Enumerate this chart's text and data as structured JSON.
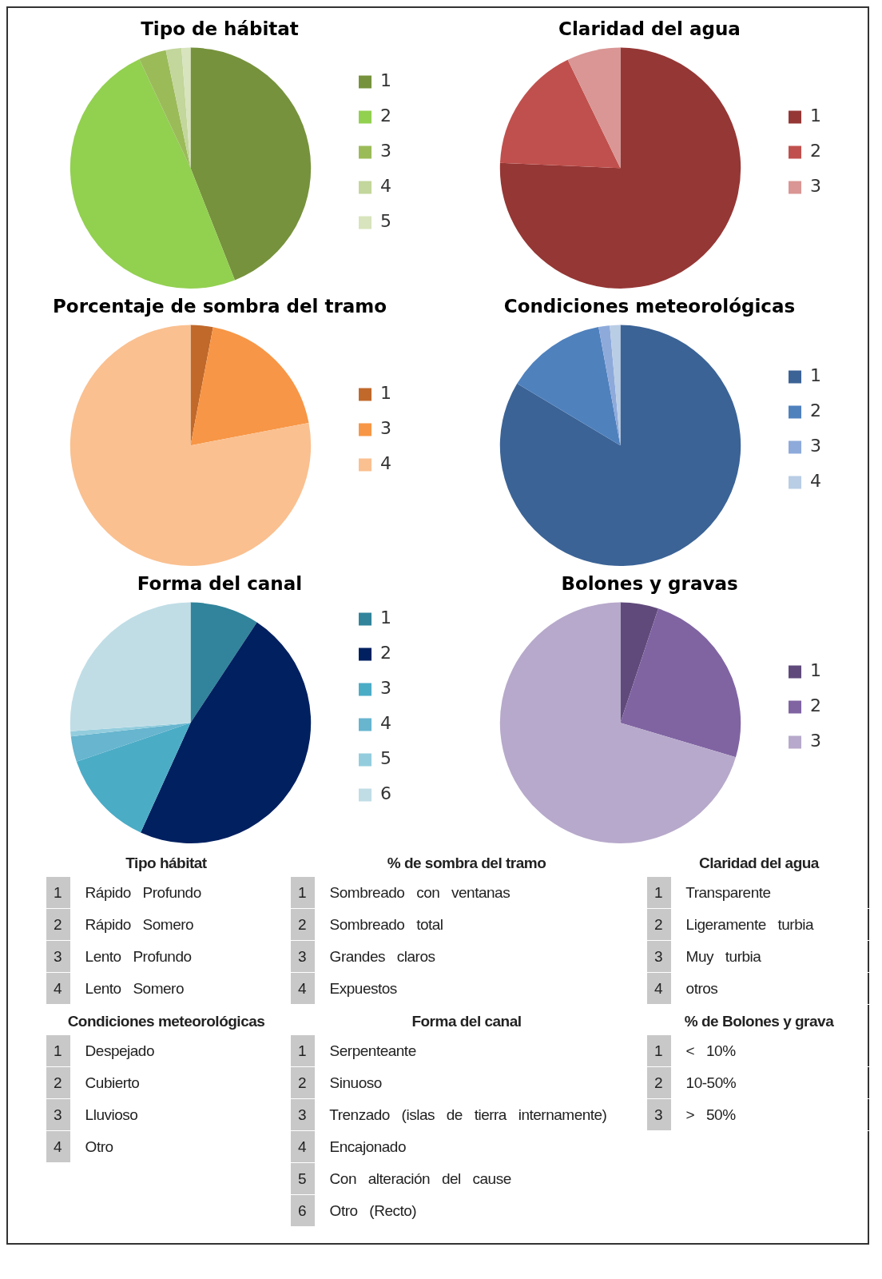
{
  "chart_data": [
    {
      "type": "pie",
      "title": "Tipo de hábitat",
      "categories": [
        "1",
        "2",
        "3",
        "4",
        "5"
      ],
      "values": [
        44,
        49,
        3.7,
        2.1,
        1.2
      ],
      "colors": [
        "#76923c",
        "#92d050",
        "#9bbb59",
        "#c3d69b",
        "#d7e4bd"
      ],
      "legend": "right"
    },
    {
      "type": "pie",
      "title": "Claridad del agua",
      "categories": [
        "1",
        "2",
        "3"
      ],
      "values": [
        75.7,
        17.1,
        7.2
      ],
      "colors": [
        "#953735",
        "#c0504d",
        "#d99694"
      ],
      "legend": "right"
    },
    {
      "type": "pie",
      "title": "Porcentaje de sombra del tramo",
      "categories": [
        "1",
        "3",
        "4"
      ],
      "values": [
        3,
        19,
        78
      ],
      "colors": [
        "#c0692b",
        "#f79646",
        "#fac090"
      ],
      "legend": "right"
    },
    {
      "type": "pie",
      "title": "Condiciones meteorológicas",
      "categories": [
        "1",
        "2",
        "3",
        "4"
      ],
      "values": [
        83.6,
        13.5,
        1.5,
        1.4
      ],
      "colors": [
        "#3b6396",
        "#4f81bd",
        "#8eaadb",
        "#b9cde5"
      ],
      "legend": "right"
    },
    {
      "type": "pie",
      "title": "Forma del canal",
      "categories": [
        "1",
        "2",
        "3",
        "4",
        "5",
        "6"
      ],
      "values": [
        9.3,
        47.5,
        13,
        3.4,
        0.7,
        26.1
      ],
      "colors": [
        "#31849b",
        "#002060",
        "#4bacc6",
        "#67b5cf",
        "#93cddd",
        "#c0dde6"
      ],
      "legend": "right"
    },
    {
      "type": "pie",
      "title": "Bolones y gravas",
      "categories": [
        "1",
        "2",
        "3"
      ],
      "values": [
        5.1,
        24.5,
        70.4
      ],
      "colors": [
        "#604a7b",
        "#8064a2",
        "#b7a9cb"
      ],
      "legend": "right"
    },
    {
      "type": "other",
      "title": "Tipo hábitat",
      "annotations": [
        "1 Rápido Profundo",
        "2 Rápido Somero",
        "3 Lento Profundo",
        "4 Lento Somero"
      ]
    },
    {
      "type": "other",
      "title": "% de sombra del tramo",
      "annotations": [
        "1 Sombreado con ventanas",
        "2 Sombreado total",
        "3 Grandes claros",
        "4 Expuestos"
      ]
    },
    {
      "type": "other",
      "title": "Claridad del agua",
      "annotations": [
        "1 Transparente",
        "2 Ligeramente turbia",
        "3 Muy turbia",
        "4 otros"
      ]
    },
    {
      "type": "other",
      "title": "Condiciones meteorológicas",
      "annotations": [
        "1 Despejado",
        "2 Cubierto",
        "3 Lluvioso",
        "4 Otro"
      ]
    },
    {
      "type": "other",
      "title": "Forma del canal",
      "annotations": [
        "1 Serpenteante",
        "2 Sinuoso",
        "3 Trenzado (islas de tierra internamente)",
        "4 Encajonado",
        "5 Con alteración del cause",
        "6 Otro (Recto)"
      ]
    },
    {
      "type": "other",
      "title": "% de Bolones y grava",
      "annotations": [
        "1 < 10%",
        "2 10-50%",
        "3 > 50%"
      ]
    }
  ]
}
